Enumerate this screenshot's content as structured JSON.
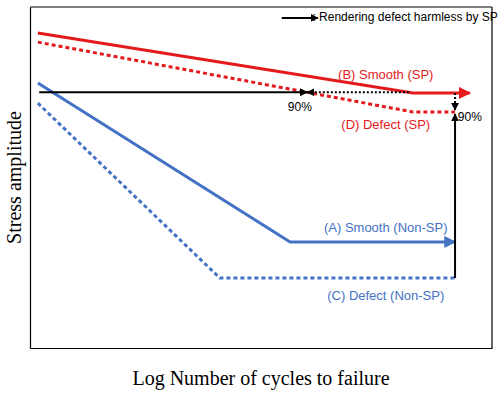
{
  "chart_data": {
    "type": "line",
    "x_label": "Log Number of cycles to failure",
    "y_label": "Stress amplitude",
    "xlim": [
      0,
      100
    ],
    "ylim": [
      0,
      100
    ],
    "tick_labels": false,
    "grid": false,
    "series": [
      {
        "name": "(B) Smooth (SP)",
        "color": "#e41a1c",
        "line_style": "solid",
        "marker": "arrow",
        "x": [
          1.7,
          82.9,
          95.2
        ],
        "values": [
          92.4,
          74.8,
          74.8
        ]
      },
      {
        "name": "(D) Defect (SP)",
        "color": "#e41a1c",
        "line_style": "dotted",
        "x": [
          1.7,
          82.9,
          92
        ],
        "values": [
          89.7,
          69.2,
          69.2
        ]
      },
      {
        "name": "(A) Smooth (Non-SP)",
        "color": "#4472c4",
        "line_style": "solid",
        "marker": "arrow",
        "x": [
          1.7,
          56.3,
          92
        ],
        "values": [
          77.7,
          31.1,
          31.1
        ]
      },
      {
        "name": "(C) Defect (Non-SP)",
        "color": "#4472c4",
        "line_style": "dotted",
        "x": [
          1.7,
          41.1,
          92
        ],
        "values": [
          71.8,
          20.5,
          20.5
        ]
      }
    ],
    "arrows": [
      {
        "x": [
          2,
          60
        ],
        "y": [
          75,
          75
        ],
        "line_style": "solid"
      },
      {
        "x": [
          82,
          60
        ],
        "y": [
          75,
          75
        ],
        "line_style": "dotted"
      },
      {
        "x": [
          92,
          92
        ],
        "y": [
          20.5,
          68.6
        ],
        "line_style": "solid"
      },
      {
        "x": [
          92,
          92
        ],
        "y": [
          74.8,
          69.8
        ],
        "line_style": "dotted"
      },
      {
        "x": [
          54.5,
          62.3
        ],
        "y": [
          96.8,
          96.8
        ],
        "line_style": "solid"
      }
    ],
    "annotations": [
      {
        "text": ": Rendering defect harmless by SP",
        "x": 81.2,
        "y": 96.8
      },
      {
        "text": "90%",
        "x": 58.4,
        "y": 70.5
      },
      {
        "text": "90%",
        "x": 95.2,
        "y": 67.4
      }
    ]
  }
}
